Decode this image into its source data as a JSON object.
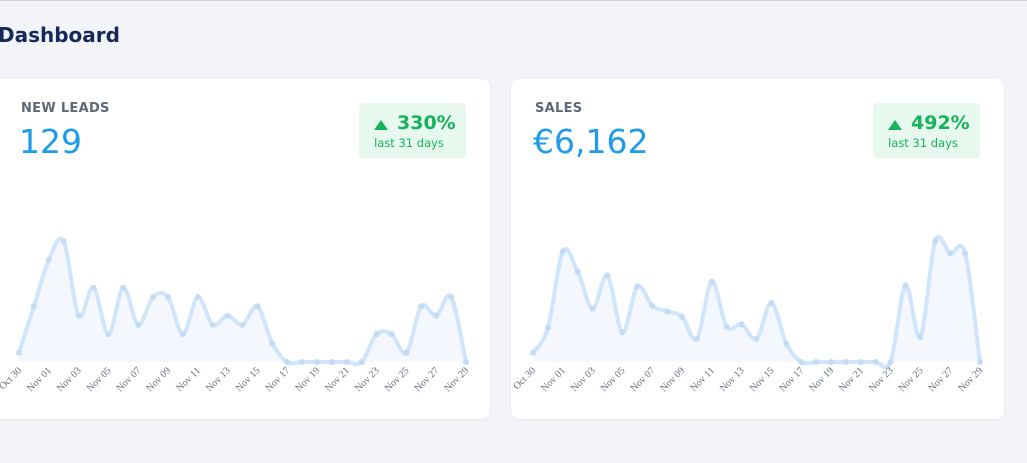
{
  "header": {
    "title": "Dashboard"
  },
  "cards": [
    {
      "title": "NEW LEADS",
      "value": "129",
      "change": "330%",
      "period": "last 31 days",
      "chart": {
        "type": "line",
        "categories": [
          "Oct 30",
          null,
          "Nov 01",
          null,
          "Nov 03",
          null,
          "Nov 05",
          null,
          "Nov 07",
          null,
          "Nov 09",
          null,
          "Nov 11",
          null,
          "Nov 13",
          null,
          "Nov 15",
          null,
          "Nov 17",
          null,
          "Nov 19",
          null,
          "Nov 21",
          null,
          "Nov 23",
          null,
          "Nov 25",
          null,
          "Nov 27",
          null,
          "Nov 29"
        ],
        "values": [
          1,
          6,
          11,
          13,
          5,
          8,
          3,
          8,
          4,
          7,
          7,
          3,
          7,
          4,
          5,
          4,
          6,
          2,
          0,
          0,
          0,
          0,
          0,
          0,
          3,
          3,
          1,
          6,
          5,
          7,
          0
        ],
        "ylim": [
          0,
          14
        ],
        "color": "#cfe5fb",
        "fill": "#f4f7fe"
      }
    },
    {
      "title": "SALES",
      "value": "€6,162",
      "change": "492%",
      "period": "last 31 days",
      "chart": {
        "type": "line",
        "categories": [
          "Oct 30",
          null,
          "Nov 01",
          null,
          "Nov 03",
          null,
          "Nov 05",
          null,
          "Nov 07",
          null,
          "Nov 09",
          null,
          "Nov 11",
          null,
          "Nov 13",
          null,
          "Nov 15",
          null,
          "Nov 17",
          null,
          "Nov 19",
          null,
          "Nov 21",
          null,
          "Nov 23",
          null,
          "Nov 25",
          null,
          "Nov 27",
          null,
          "Nov 29"
        ],
        "values": [
          42,
          155,
          502,
          410,
          242,
          393,
          134,
          343,
          255,
          230,
          205,
          105,
          364,
          159,
          171,
          105,
          268,
          84,
          0,
          0,
          0,
          0,
          0,
          0,
          0,
          347,
          113,
          549,
          493,
          493,
          0
        ],
        "ylim": [
          0,
          590
        ],
        "color": "#cfe5fb",
        "fill": "#f4f7fe"
      }
    }
  ]
}
